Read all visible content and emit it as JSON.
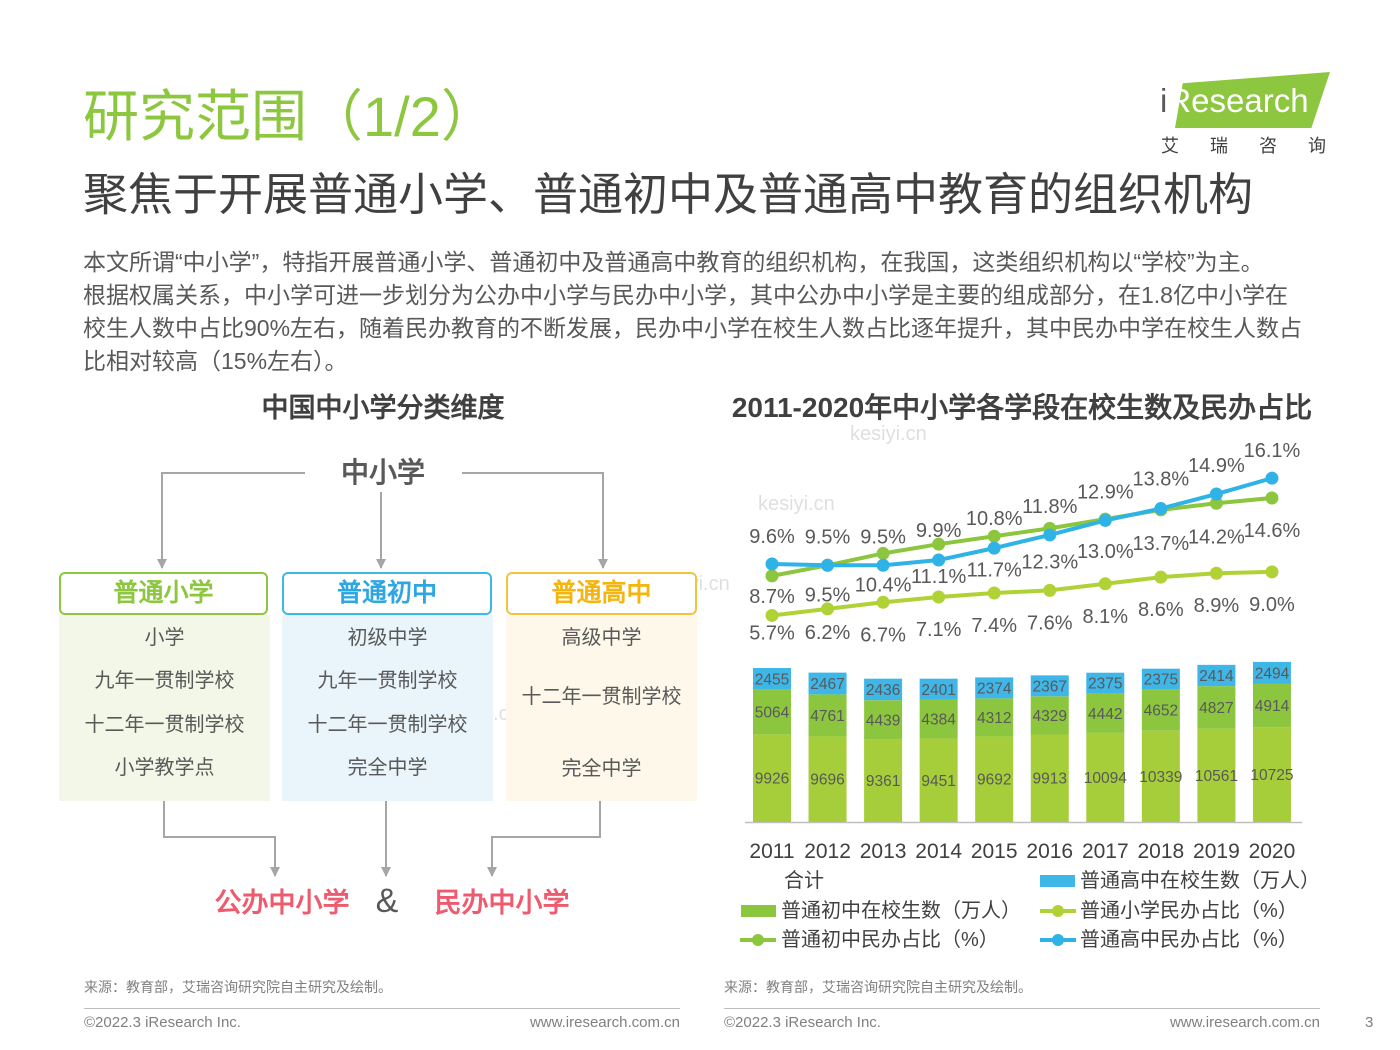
{
  "page": {
    "title": "研究范围（1/2）",
    "subtitle": "聚焦于开展普通小学、普通初中及普通高中教育的组织机构",
    "intro_lines": [
      "本文所谓“中小学”，特指开展普通小学、普通初中及普通高中教育的组织机构，在我国，这类组织机构以“学校”为主。",
      "根据权属关系，中小学可进一步划分为公办中小学与民办中小学，其中公办中小学是主要的组成部分，在1.8亿中小学在",
      "校生人数中占比90%左右，随着民办教育的不断发展，民办中小学在校生人数占比逐年提升，其中民办中学在校生人数占",
      "比相对较高（15%左右）。"
    ],
    "page_number": "3"
  },
  "logo": {
    "text": "iResearch",
    "tagline": "艾瑞咨询"
  },
  "watermark": "kesiyi.cn",
  "left_panel": {
    "title": "中国中小学分类维度",
    "root": "中小学",
    "categories": [
      {
        "label": "普通小学",
        "items": [
          "小学",
          "九年一贯制学校",
          "十二年一贯制学校",
          "小学教学点"
        ],
        "color": "#8DC63F"
      },
      {
        "label": "普通初中",
        "items": [
          "初级中学",
          "九年一贯制学校",
          "十二年一贯制学校",
          "完全中学"
        ],
        "color": "#2EA7E0"
      },
      {
        "label": "普通高中",
        "items": [
          "高级中学",
          "十二年一贯制学校",
          "完全中学"
        ],
        "color": "#F5B50F"
      }
    ],
    "outcomes": {
      "public": "公办中小学",
      "connector": "&",
      "private": "民办中小学"
    },
    "source": "来源：教育部，艾瑞咨询研究院自主研究及绘制。"
  },
  "right_panel": {
    "source": "来源：教育部，艾瑞咨询研究院自主研究及绘制。"
  },
  "chart_data": {
    "type": "bar",
    "overlay_type": "line",
    "title": "2011-2020年中小学各学段在校生数及民办占比",
    "categories": [
      "2011",
      "2012",
      "2013",
      "2014",
      "2015",
      "2016",
      "2017",
      "2018",
      "2019",
      "2020"
    ],
    "bar_series": [
      {
        "values": [
          9926,
          9696,
          9361,
          9451,
          9692,
          9913,
          10094,
          10339,
          10561,
          10725
        ],
        "color": "#A6CD3A"
      },
      {
        "name": "普通初中在校生数（万人）",
        "values": [
          5064,
          4761,
          4439,
          4384,
          4312,
          4329,
          4442,
          4652,
          4827,
          4914
        ],
        "color": "#8CC63F"
      },
      {
        "name": "普通高中在校生数（万人）",
        "values": [
          2455,
          2467,
          2436,
          2401,
          2374,
          2367,
          2375,
          2375,
          2414,
          2494
        ],
        "color": "#3EB6E7"
      }
    ],
    "line_series": [
      {
        "name": "普通小学民办占比（%）",
        "values": [
          5.7,
          6.2,
          6.7,
          7.1,
          7.4,
          7.6,
          8.1,
          8.6,
          8.9,
          9.0
        ],
        "color": "#B0D237"
      },
      {
        "name": "普通初中民办占比（%）",
        "values": [
          8.7,
          9.5,
          10.4,
          11.1,
          11.7,
          12.3,
          13.0,
          13.7,
          14.2,
          14.6
        ],
        "color": "#8CC63F"
      },
      {
        "name": "普通高中民办占比（%）",
        "values": [
          9.6,
          9.5,
          9.5,
          9.9,
          10.8,
          11.8,
          12.9,
          13.8,
          14.9,
          16.1
        ],
        "color": "#2FB3E7"
      }
    ],
    "legend_total": "合计",
    "legend_position": "bottom",
    "grid": false
  },
  "footer": {
    "copyright": "©2022.3 iResearch Inc.",
    "website": "www.iresearch.com.cn"
  },
  "colors": {
    "title_green": "#8DC63F",
    "outcome_red": "#EF5B6E",
    "connector_gray": "#A6A6A6",
    "text_gray": "#595959"
  }
}
